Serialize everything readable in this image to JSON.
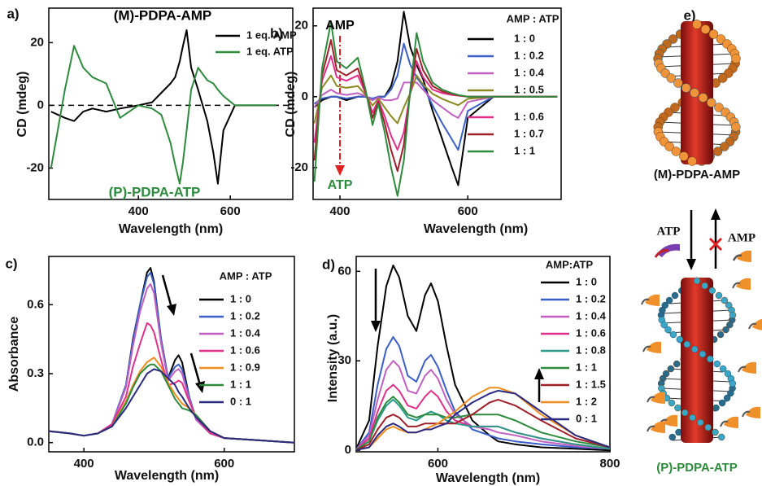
{
  "chart_data": [
    {
      "type": "line",
      "panel_label": "a)",
      "xlabel": "Wavelength (nm)",
      "ylabel": "CD (mdeg)",
      "xlim": [
        205,
        736
      ],
      "ylim": [
        -30,
        31
      ],
      "xticks": [
        400,
        600
      ],
      "yticks": [
        -20,
        0,
        20
      ],
      "reference_line": 0,
      "legend": "upper right",
      "annotations": [
        {
          "text": "(M)-PDPA-AMP",
          "color": "#000000"
        },
        {
          "text": "(P)-PDPA-ATP",
          "color": "#2e8b3e"
        }
      ],
      "x": [
        210,
        240,
        260,
        280,
        300,
        330,
        360,
        400,
        430,
        450,
        470,
        480,
        490,
        497,
        505,
        515,
        530,
        550,
        563,
        573,
        585,
        610,
        650,
        700
      ],
      "series": [
        {
          "name": "1 eq. AMP",
          "color": "#000000",
          "values": [
            -2,
            -4,
            -5,
            -2,
            -1,
            -2,
            -1,
            0,
            1,
            4,
            7,
            9,
            14,
            19,
            24,
            12,
            5,
            -5,
            -15,
            -25,
            -8,
            0,
            0,
            0
          ]
        },
        {
          "name": "1 eq. ATP",
          "color": "#2e8b3e",
          "values": [
            -20,
            5,
            19,
            12,
            9,
            7,
            -4,
            0,
            -1,
            -3,
            -12,
            -19,
            -25,
            -18,
            -8,
            5,
            12,
            8,
            7,
            5,
            3,
            0,
            0,
            0
          ]
        }
      ]
    },
    {
      "type": "line",
      "panel_label": "b)",
      "xlabel": "Wavelength (nm)",
      "ylabel": "CD (mdeg)",
      "xlim": [
        358,
        746
      ],
      "ylim": [
        -29,
        25
      ],
      "xticks": [
        400,
        600
      ],
      "yticks": [
        -20,
        0,
        20
      ],
      "legend": "upper right",
      "legend_title": "AMP : ATP",
      "annotations": [
        {
          "text": "AMP",
          "color": "#000000"
        },
        {
          "text": "ATP",
          "color": "#2e8b3e"
        }
      ],
      "x": [
        360,
        372,
        386,
        395,
        410,
        428,
        440,
        451,
        460,
        470,
        480,
        490,
        500,
        510,
        520,
        530,
        545,
        560,
        575,
        585,
        600,
        640,
        700,
        740
      ],
      "series": [
        {
          "name": "1 : 0",
          "color": "#000000",
          "values": [
            -3,
            -1,
            0,
            0,
            -1,
            0,
            0,
            -1,
            0,
            0,
            3,
            10,
            24,
            14,
            9,
            5,
            -4,
            -12,
            -20,
            -25,
            -6,
            0,
            0,
            0
          ]
        },
        {
          "name": "1 : 0.2",
          "color": "#3a5fc8",
          "values": [
            -2,
            -0.5,
            0,
            0,
            -0.5,
            0,
            0,
            -0.5,
            0,
            0,
            2,
            6,
            15,
            9,
            5.5,
            3,
            -2.5,
            -7.5,
            -12,
            -15,
            -4,
            0,
            0,
            0
          ]
        },
        {
          "name": "1 : 0.4",
          "color": "#c060c0",
          "values": [
            -3,
            0.5,
            2,
            1,
            0.5,
            1,
            0.2,
            -1,
            -0.2,
            -1,
            -1,
            -0.5,
            4,
            4,
            4,
            2,
            -1,
            -3,
            -5,
            -6,
            -1.5,
            0,
            0,
            0
          ]
        },
        {
          "name": "1 : 0.5",
          "color": "#8a8a20",
          "values": [
            -7.5,
            2.5,
            6,
            3,
            2.5,
            3,
            0.5,
            -2.5,
            -0.5,
            -3,
            -5.5,
            -7.5,
            -3,
            1,
            6,
            3.5,
            0.8,
            -0.6,
            -1.7,
            -2.4,
            -0.6,
            0,
            0,
            0
          ]
        },
        {
          "name": "1 : 0.6",
          "color": "#e0308a",
          "values": [
            -13,
            4.5,
            11.5,
            5.5,
            4.5,
            6,
            1,
            -4.5,
            -1,
            -5.5,
            -11,
            -15,
            -10,
            1,
            10,
            5.5,
            2,
            1,
            0.5,
            0.3,
            0,
            0,
            0,
            0
          ]
        },
        {
          "name": "1 : 0.7",
          "color": "#a0202a",
          "values": [
            -18,
            6,
            16,
            7.5,
            6,
            8,
            1.5,
            -6,
            -1.5,
            -7.5,
            -15,
            -21,
            -13.5,
            1.5,
            13.5,
            7.5,
            3,
            1.5,
            0.8,
            0.4,
            0,
            0,
            0,
            0
          ]
        },
        {
          "name": "1 : 1",
          "color": "#2e8b3e",
          "values": [
            -24,
            8,
            21,
            10,
            8,
            11,
            2,
            -8,
            -2,
            -10,
            -20,
            -28,
            -18,
            2,
            18,
            10,
            4,
            2,
            1,
            0.5,
            0,
            0,
            0,
            0
          ]
        }
      ]
    },
    {
      "type": "line",
      "panel_label": "c)",
      "xlabel": "Wavelength (nm)",
      "ylabel": "Absorbance",
      "xlim": [
        350,
        700
      ],
      "ylim": [
        -0.04,
        0.81
      ],
      "xticks": [
        400,
        600
      ],
      "yticks": [
        {
          "value": 0,
          "label": "0.0"
        },
        0.3,
        0.6
      ],
      "legend": "upper right",
      "legend_title": "AMP : ATP",
      "x": [
        350,
        380,
        400,
        420,
        440,
        460,
        470,
        480,
        490,
        495,
        500,
        510,
        520,
        530,
        535,
        540,
        550,
        560,
        580,
        600,
        650,
        700
      ],
      "series": [
        {
          "name": "1 : 0",
          "color": "#000000",
          "values": [
            0.05,
            0.04,
            0.03,
            0.04,
            0.08,
            0.25,
            0.45,
            0.6,
            0.74,
            0.76,
            0.7,
            0.45,
            0.28,
            0.36,
            0.38,
            0.35,
            0.2,
            0.1,
            0.04,
            0.02,
            0.01,
            0
          ]
        },
        {
          "name": "1 : 0.2",
          "color": "#3a5fc8",
          "values": [
            0.05,
            0.04,
            0.03,
            0.04,
            0.08,
            0.25,
            0.44,
            0.6,
            0.72,
            0.74,
            0.69,
            0.45,
            0.28,
            0.33,
            0.34,
            0.32,
            0.2,
            0.1,
            0.04,
            0.02,
            0.01,
            0
          ]
        },
        {
          "name": "1 : 0.4",
          "color": "#c060c0",
          "values": [
            0.05,
            0.04,
            0.03,
            0.04,
            0.08,
            0.24,
            0.42,
            0.57,
            0.67,
            0.69,
            0.65,
            0.43,
            0.27,
            0.31,
            0.32,
            0.3,
            0.19,
            0.1,
            0.04,
            0.02,
            0.01,
            0
          ]
        },
        {
          "name": "1 : 0.6",
          "color": "#e0308a",
          "values": [
            0.05,
            0.04,
            0.03,
            0.04,
            0.08,
            0.2,
            0.33,
            0.43,
            0.52,
            0.51,
            0.48,
            0.36,
            0.25,
            0.26,
            0.27,
            0.26,
            0.18,
            0.11,
            0.04,
            0.02,
            0.01,
            0
          ]
        },
        {
          "name": "1 : 0.9",
          "color": "#f08c20",
          "values": [
            0.05,
            0.04,
            0.03,
            0.04,
            0.07,
            0.18,
            0.25,
            0.31,
            0.35,
            0.36,
            0.37,
            0.33,
            0.26,
            0.21,
            0.19,
            0.17,
            0.15,
            0.12,
            0.05,
            0.02,
            0.01,
            0
          ]
        },
        {
          "name": "1 : 1",
          "color": "#2e8b3e",
          "values": [
            0.05,
            0.04,
            0.03,
            0.04,
            0.07,
            0.17,
            0.24,
            0.3,
            0.33,
            0.34,
            0.34,
            0.31,
            0.25,
            0.19,
            0.17,
            0.15,
            0.14,
            0.12,
            0.05,
            0.02,
            0.01,
            0
          ]
        },
        {
          "name": "0 : 1",
          "color": "#2a2a80",
          "values": [
            0.05,
            0.04,
            0.03,
            0.04,
            0.07,
            0.15,
            0.2,
            0.25,
            0.3,
            0.31,
            0.32,
            0.31,
            0.28,
            0.25,
            0.22,
            0.2,
            0.15,
            0.11,
            0.05,
            0.02,
            0.01,
            0
          ]
        }
      ]
    },
    {
      "type": "line",
      "panel_label": "d)",
      "xlabel": "Wavelength (nm)",
      "ylabel": "Intensity (a.u.)",
      "xlim": [
        505,
        800
      ],
      "ylim": [
        -0.5,
        65
      ],
      "xticks": [
        600,
        800
      ],
      "yticks": [
        0,
        30,
        60
      ],
      "legend": "upper right",
      "legend_title": "AMP:ATP",
      "x": [
        505,
        520,
        530,
        540,
        548,
        555,
        565,
        575,
        585,
        592,
        600,
        610,
        620,
        640,
        660,
        670,
        690,
        720,
        760,
        800
      ],
      "series": [
        {
          "name": "1 : 0",
          "color": "#000000",
          "values": [
            0.5,
            10,
            35,
            55,
            62,
            58,
            45,
            40,
            52,
            56,
            50,
            35,
            22,
            10,
            5,
            3,
            2,
            1,
            0.5,
            0
          ]
        },
        {
          "name": "1 : 0.2",
          "color": "#3a5fc8",
          "values": [
            0.3,
            6,
            22,
            34,
            38,
            35,
            25,
            23,
            30,
            32,
            28,
            20,
            13,
            7,
            5,
            4,
            3,
            2,
            1,
            0.5
          ]
        },
        {
          "name": "1 : 0.4",
          "color": "#c060c0",
          "values": [
            0.3,
            5,
            17,
            27,
            30,
            28,
            20,
            19,
            25,
            27,
            24,
            17,
            12,
            8,
            7,
            6,
            5,
            3,
            1.5,
            0.5
          ]
        },
        {
          "name": "1 : 0.6",
          "color": "#e0308a",
          "values": [
            0.2,
            4,
            13,
            20,
            22,
            20,
            15,
            14,
            18,
            20,
            18,
            13,
            10,
            8,
            8,
            8,
            6,
            4,
            2,
            0.5
          ]
        },
        {
          "name": "1 : 0.8",
          "color": "#2a9a8a",
          "values": [
            0.2,
            3,
            10,
            15,
            17,
            15,
            11,
            10,
            12,
            13,
            12,
            10,
            9,
            8,
            8,
            8,
            6,
            4,
            2,
            0.5
          ]
        },
        {
          "name": "1 : 1",
          "color": "#2e8b3e",
          "values": [
            0.2,
            3,
            11,
            16,
            18,
            16,
            12,
            11,
            12,
            12,
            12,
            11,
            11,
            12,
            12,
            12,
            10,
            6,
            3,
            1
          ]
        },
        {
          "name": "1 : 1.5",
          "color": "#a0202a",
          "values": [
            0.1,
            2,
            7,
            11,
            12,
            11,
            8,
            8,
            9,
            9,
            9,
            9,
            9,
            12,
            16,
            17,
            15,
            10,
            4,
            1
          ]
        },
        {
          "name": "1 : 2",
          "color": "#f08c20",
          "values": [
            0.1,
            1,
            4,
            7,
            8,
            7,
            6,
            6,
            7,
            8,
            9,
            11,
            13,
            18,
            21,
            21,
            19,
            12,
            5,
            1
          ]
        },
        {
          "name": "0 : 1",
          "color": "#2a2a80",
          "values": [
            0.1,
            1,
            5,
            8,
            9,
            8,
            6,
            6,
            7,
            7,
            8,
            9,
            12,
            16,
            19,
            20,
            19,
            13,
            5,
            1
          ]
        }
      ]
    }
  ],
  "diagram": {
    "label": "e)",
    "top_caption": "(M)-PDPA-AMP",
    "left_arrow_label": "ATP",
    "right_arrow_label": "AMP",
    "bottom_caption": "(P)-PDPA-ATP"
  }
}
